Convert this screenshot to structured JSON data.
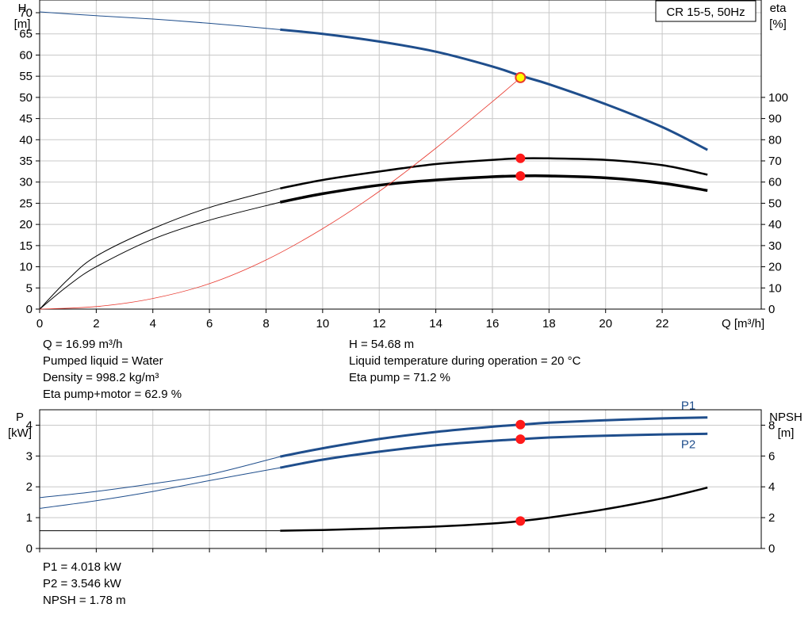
{
  "chart_data": [
    {
      "type": "line",
      "title": "CR 15-5, 50Hz",
      "xlabel": "Q [m³/h]",
      "xlim": [
        0,
        25.5
      ],
      "ylim": [
        0,
        73
      ],
      "y2lim": [
        0,
        146
      ],
      "ylabel_left": [
        "H",
        "[m]"
      ],
      "ylabel_right": [
        "eta",
        "[%]"
      ],
      "x_ticks": [
        "0",
        "2",
        "4",
        "6",
        "8",
        "10",
        "12",
        "14",
        "16",
        "18",
        "20",
        "22"
      ],
      "y_ticks_left": [
        "0",
        "5",
        "10",
        "15",
        "20",
        "25",
        "30",
        "35",
        "40",
        "45",
        "50",
        "55",
        "60",
        "65",
        "70"
      ],
      "y_ticks_right": [
        "0",
        "10",
        "20",
        "30",
        "40",
        "50",
        "60",
        "70",
        "80",
        "90",
        "100"
      ],
      "grid": true,
      "series": [
        {
          "axis": "left",
          "color": "#1f4e8c",
          "x": [
            0,
            2,
            4,
            6,
            8.5,
            10,
            12,
            14,
            16,
            17,
            18,
            20,
            22,
            23.6
          ],
          "y": [
            70.2,
            69.3,
            68.5,
            67.5,
            66.0,
            65.0,
            63.2,
            60.8,
            57.3,
            55.1,
            53.1,
            48.4,
            43.0,
            37.6
          ],
          "thin_until": 8.5
        },
        {
          "axis": "right",
          "color": "#000000",
          "x": [
            0,
            1,
            2,
            4,
            6,
            8.5,
            10,
            12,
            14,
            16,
            17,
            18,
            20,
            22,
            23.6
          ],
          "y": [
            0,
            14,
            25,
            38,
            48,
            57,
            61,
            65,
            68.5,
            70.5,
            71.2,
            71.2,
            70.5,
            68,
            63.5
          ],
          "thin_until": 8.5
        },
        {
          "axis": "right",
          "color": "#000000",
          "x": [
            0,
            1,
            2,
            4,
            6,
            8.5,
            10,
            12,
            14,
            16,
            17,
            18,
            20,
            22,
            23.6
          ],
          "y": [
            0,
            11,
            20,
            33,
            42,
            50.5,
            54.5,
            58.5,
            61,
            62.5,
            62.9,
            62.9,
            62,
            59.5,
            56
          ],
          "thin": true,
          "thin_until": 8.5,
          "bold": true
        },
        {
          "axis": "left",
          "color": "#e8392f",
          "thin": true,
          "x": [
            0,
            2,
            4,
            6,
            8,
            10,
            12,
            14,
            16,
            17
          ],
          "y": [
            0,
            0.6,
            2.5,
            6.0,
            11.6,
            19.0,
            27.8,
            38.0,
            49.0,
            54.68
          ]
        }
      ],
      "operating_points": [
        {
          "axis": "left",
          "x": 16.99,
          "y": 54.68,
          "style": "yellow"
        },
        {
          "axis": "right",
          "x": 16.99,
          "y": 71.2,
          "style": "red"
        },
        {
          "axis": "right",
          "x": 16.99,
          "y": 62.9,
          "style": "red"
        }
      ]
    },
    {
      "type": "line",
      "xlim": [
        0,
        25.5
      ],
      "ylim": [
        0,
        4.5
      ],
      "y2lim": [
        0,
        9
      ],
      "ylabel_left": [
        "P",
        "[kW]"
      ],
      "ylabel_right": [
        "NPSH",
        "[m]"
      ],
      "y_ticks_left": [
        "0",
        "1",
        "2",
        "3",
        "4"
      ],
      "y_ticks_right": [
        "0",
        "2",
        "4",
        "6",
        "8"
      ],
      "grid": true,
      "series": [
        {
          "name": "P1",
          "axis": "left",
          "color": "#1f4e8c",
          "x": [
            0,
            2,
            4,
            6,
            8.5,
            10,
            12,
            14,
            16,
            17,
            18,
            20,
            22,
            23.6
          ],
          "y": [
            1.65,
            1.85,
            2.1,
            2.4,
            2.98,
            3.25,
            3.55,
            3.78,
            3.95,
            4.018,
            4.08,
            4.16,
            4.22,
            4.25
          ],
          "thin_until": 8.5
        },
        {
          "name": "P2",
          "axis": "left",
          "color": "#1f4e8c",
          "x": [
            0,
            2,
            4,
            6,
            8.5,
            10,
            12,
            14,
            16,
            17,
            18,
            20,
            22,
            23.6
          ],
          "y": [
            1.3,
            1.55,
            1.85,
            2.2,
            2.62,
            2.88,
            3.14,
            3.35,
            3.49,
            3.546,
            3.6,
            3.66,
            3.7,
            3.72
          ],
          "thin_until": 8.5
        },
        {
          "axis": "right",
          "color": "#000000",
          "x": [
            0,
            4,
            6,
            8.5,
            10,
            12,
            14,
            16,
            17,
            18,
            20,
            22,
            23.6
          ],
          "y": [
            1.15,
            1.15,
            1.15,
            1.15,
            1.2,
            1.3,
            1.42,
            1.62,
            1.78,
            2.0,
            2.55,
            3.25,
            3.95
          ],
          "thin_until": 8.5
        }
      ],
      "operating_points": [
        {
          "axis": "left",
          "x": 16.99,
          "y": 4.018,
          "style": "red"
        },
        {
          "axis": "left",
          "x": 16.99,
          "y": 3.546,
          "style": "red"
        },
        {
          "axis": "right",
          "x": 16.99,
          "y": 1.78,
          "style": "red"
        }
      ]
    }
  ],
  "info_top": {
    "left": [
      "Q = 16.99 m³/h",
      "Pumped liquid = Water",
      "Density = 998.2 kg/m³",
      "Eta pump+motor = 62.9 %"
    ],
    "right": [
      "H = 54.68 m",
      "Liquid temperature during operation = 20 °C",
      "Eta pump = 71.2 %"
    ]
  },
  "info_bottom": [
    "P1 = 4.018 kW",
    "P2 = 3.546 kW",
    "NPSH = 1.78 m"
  ]
}
